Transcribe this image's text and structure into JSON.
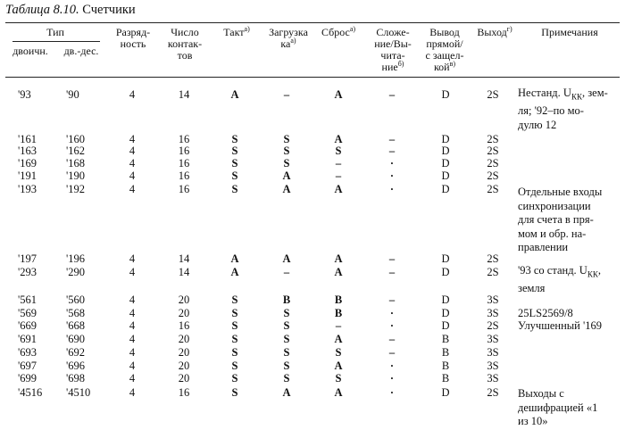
{
  "caption": {
    "label": "Таблица 8.10.",
    "title": "Счетчики"
  },
  "header": {
    "type": "Тип",
    "binary": "двоичн.",
    "bcd": "дв.-дес.",
    "bits": [
      "Разряд-",
      "ность"
    ],
    "contacts": [
      "Число",
      "контак-",
      "тов"
    ],
    "clock": "Такт",
    "clock_fn": "а)",
    "load": [
      "Загрузка",
      "ка"
    ],
    "load_fn": "а)",
    "reset": "Сброс",
    "reset_fn": "а)",
    "updown": [
      "Сложе-",
      "ние/Вы-",
      "чита-",
      "ние"
    ],
    "updown_fn": "б)",
    "output": [
      "Вывод",
      "прямой/",
      "с защел-",
      "кой"
    ],
    "output_fn": "в)",
    "out": "Выход",
    "out_fn": "г)",
    "notes": "Примечания"
  },
  "rows": [
    {
      "bin": "'93",
      "bcd": "'90",
      "bits": "4",
      "pins": "14",
      "clk": "A",
      "load": "–",
      "reset": "A",
      "ud": "–",
      "out": "D",
      "outp": "2S"
    },
    {
      "bin": "'161",
      "bcd": "'160",
      "bits": "4",
      "pins": "16",
      "clk": "S",
      "load": "S",
      "reset": "A",
      "ud": "–",
      "out": "D",
      "outp": "2S"
    },
    {
      "bin": "'163",
      "bcd": "'162",
      "bits": "4",
      "pins": "16",
      "clk": "S",
      "load": "S",
      "reset": "S",
      "ud": "–",
      "out": "D",
      "outp": "2S"
    },
    {
      "bin": "'169",
      "bcd": "'168",
      "bits": "4",
      "pins": "16",
      "clk": "S",
      "load": "S",
      "reset": "–",
      "ud": "·",
      "out": "D",
      "outp": "2S"
    },
    {
      "bin": "'191",
      "bcd": "'190",
      "bits": "4",
      "pins": "16",
      "clk": "S",
      "load": "A",
      "reset": "–",
      "ud": "·",
      "out": "D",
      "outp": "2S"
    },
    {
      "bin": "'193",
      "bcd": "'192",
      "bits": "4",
      "pins": "16",
      "clk": "S",
      "load": "A",
      "reset": "A",
      "ud": "·",
      "out": "D",
      "outp": "2S"
    },
    {
      "bin": "'197",
      "bcd": "'196",
      "bits": "4",
      "pins": "14",
      "clk": "A",
      "load": "A",
      "reset": "A",
      "ud": "–",
      "out": "D",
      "outp": "2S"
    },
    {
      "bin": "'293",
      "bcd": "'290",
      "bits": "4",
      "pins": "14",
      "clk": "A",
      "load": "–",
      "reset": "A",
      "ud": "–",
      "out": "D",
      "outp": "2S"
    },
    {
      "bin": "'561",
      "bcd": "'560",
      "bits": "4",
      "pins": "20",
      "clk": "S",
      "load": "B",
      "reset": "B",
      "ud": "–",
      "out": "D",
      "outp": "3S"
    },
    {
      "bin": "'569",
      "bcd": "'568",
      "bits": "4",
      "pins": "20",
      "clk": "S",
      "load": "S",
      "reset": "B",
      "ud": "·",
      "out": "D",
      "outp": "3S"
    },
    {
      "bin": "'669",
      "bcd": "'668",
      "bits": "4",
      "pins": "16",
      "clk": "S",
      "load": "S",
      "reset": "–",
      "ud": "·",
      "out": "D",
      "outp": "2S"
    },
    {
      "bin": "'691",
      "bcd": "'690",
      "bits": "4",
      "pins": "20",
      "clk": "S",
      "load": "S",
      "reset": "A",
      "ud": "–",
      "out": "B",
      "outp": "3S"
    },
    {
      "bin": "'693",
      "bcd": "'692",
      "bits": "4",
      "pins": "20",
      "clk": "S",
      "load": "S",
      "reset": "S",
      "ud": "–",
      "out": "B",
      "outp": "3S"
    },
    {
      "bin": "'697",
      "bcd": "'696",
      "bits": "4",
      "pins": "20",
      "clk": "S",
      "load": "S",
      "reset": "A",
      "ud": "·",
      "out": "B",
      "outp": "3S"
    },
    {
      "bin": "'699",
      "bcd": "'698",
      "bits": "4",
      "pins": "20",
      "clk": "S",
      "load": "S",
      "reset": "S",
      "ud": "·",
      "out": "B",
      "outp": "3S"
    },
    {
      "bin": "'4516",
      "bcd": "'4510",
      "bits": "4",
      "pins": "16",
      "clk": "S",
      "load": "A",
      "reset": "A",
      "ud": "·",
      "out": "D",
      "outp": "2S"
    }
  ],
  "notes": {
    "n93": {
      "p1": "Нестанд. U",
      "sub": "КК",
      "p2": ", зем-",
      "l2": "ля; '92–по мо-",
      "l3": "дулю 12"
    },
    "n193": [
      "Отдельные входы",
      "синхронизации",
      "для счета в пря-",
      "мом и обр. на-",
      "правлении"
    ],
    "n293": {
      "p1": "'93 со станд. U",
      "sub": "КК",
      "p2": ",",
      "l2": "земля"
    },
    "n569": "25LS2569/8",
    "n669": "Улучшенный '169",
    "n4516": [
      "Выходы с",
      "дешифрацией «1",
      "из 10»"
    ]
  }
}
